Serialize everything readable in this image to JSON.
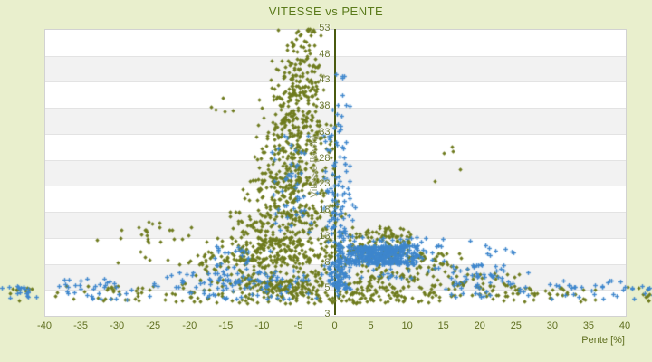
{
  "title": "VITESSE vs PENTE",
  "colors": {
    "page_bg": "#e9efcd",
    "plot_bg": "#ffffff",
    "band_alt": "#f2f2f2",
    "band_line": "#e3e3e3",
    "plot_border": "#d2d2d2",
    "zero_line": "#4a5a10",
    "axis_text": "#5e6e1e",
    "y_axis_title_text": "#9aa077",
    "series_a_color": "#6e7b1e",
    "series_b_color": "#3e86cd"
  },
  "chart_data": {
    "type": "scatter",
    "title": "VITESSE vs PENTE",
    "xlabel": "Pente [%]",
    "ylabel": "Vitesse [km/h]",
    "xlim": [
      -40,
      40
    ],
    "x_ticks": [
      -40,
      -35,
      -30,
      -25,
      -20,
      -15,
      -10,
      -5,
      0,
      5,
      10,
      15,
      20,
      25,
      30,
      35,
      40
    ],
    "y_ticks_top_to_bottom": [
      53,
      48,
      43,
      38,
      33,
      28,
      23,
      18,
      13,
      8,
      5,
      3
    ],
    "grid": "alternating horizontal bands, white and light gray, one band per y tick interval",
    "legend": "none",
    "zero_line_x": 0,
    "seed": 7,
    "series": [
      {
        "name": "serie-olive",
        "marker": "diamond",
        "color": "#6e7b1e",
        "clusters": [
          {
            "n": 45,
            "x": [
              -8,
              -1.5
            ],
            "y": [
              46,
              53
            ]
          },
          {
            "n": 70,
            "x": [
              -9.5,
              -1
            ],
            "y": [
              41,
              47
            ]
          },
          {
            "n": 105,
            "x": [
              -10.5,
              -0.5
            ],
            "y": [
              35,
              42
            ]
          },
          {
            "n": 120,
            "x": [
              -11,
              0.5
            ],
            "y": [
              29,
              36
            ]
          },
          {
            "n": 130,
            "x": [
              -12,
              1
            ],
            "y": [
              23,
              30
            ]
          },
          {
            "n": 140,
            "x": [
              -13.5,
              1.5
            ],
            "y": [
              17,
              24
            ]
          },
          {
            "n": 150,
            "x": [
              -16,
              2.5
            ],
            "y": [
              12,
              18
            ]
          },
          {
            "n": 160,
            "x": [
              -19,
              4
            ],
            "y": [
              8.5,
              13
            ]
          },
          {
            "n": 190,
            "x": [
              -22,
              6
            ],
            "y": [
              5.5,
              9.5
            ]
          },
          {
            "n": 120,
            "x": [
              -14,
              -0.5
            ],
            "y": [
              4.3,
              6
            ]
          },
          {
            "n": 200,
            "x": [
              0,
              13
            ],
            "y": [
              5,
              15
            ]
          },
          {
            "n": 75,
            "x": [
              6,
              20
            ],
            "y": [
              4.5,
              10
            ]
          },
          {
            "n": 50,
            "x": [
              13,
              26
            ],
            "y": [
              4.3,
              7
            ]
          },
          {
            "n": 140,
            "x": [
              -20,
              20
            ],
            "y": [
              3.9,
              5
            ]
          },
          {
            "n": 50,
            "x": [
              -40,
              -14
            ],
            "y": [
              4,
              5.4
            ]
          },
          {
            "n": 50,
            "x": [
              14,
              40
            ],
            "y": [
              4,
              5.4
            ]
          },
          {
            "n": 10,
            "x": [
              -46,
              -40
            ],
            "y": [
              4.1,
              5.2
            ]
          },
          {
            "n": 12,
            "x": [
              40,
              46.5
            ],
            "y": [
              4.1,
              5.2
            ]
          },
          {
            "n": 24,
            "x": [
              -35,
              -15
            ],
            "y": [
              7.5,
              15.5
            ]
          },
          {
            "n": 5,
            "x": [
              -17.5,
              -13.5
            ],
            "y": [
              36,
              40
            ]
          },
          {
            "n": 5,
            "x": [
              13.5,
              18.5
            ],
            "y": [
              21,
              31
            ]
          },
          {
            "n": 9,
            "x": [
              -30,
              -20
            ],
            "y": [
              11,
              16
            ]
          }
        ]
      },
      {
        "name": "serie-blue",
        "marker": "plus",
        "color": "#3e86cd",
        "clusters": [
          {
            "n": 380,
            "x": [
              0.5,
              12.5
            ],
            "y": [
              7.8,
              11.3
            ]
          },
          {
            "n": 90,
            "x": [
              0,
              16
            ],
            "y": [
              6.2,
              13
            ]
          },
          {
            "n": 70,
            "x": [
              -1.5,
              2.5
            ],
            "y": [
              4.8,
              8.5
            ]
          },
          {
            "n": 45,
            "x": [
              0.1,
              0.9
            ],
            "y": [
              4.5,
              12
            ]
          },
          {
            "n": 55,
            "x": [
              -2,
              3
            ],
            "y": [
              12,
              22
            ]
          },
          {
            "n": 40,
            "x": [
              -3,
              3
            ],
            "y": [
              21,
              33
            ]
          },
          {
            "n": 12,
            "x": [
              -1,
              2.5
            ],
            "y": [
              33,
              40
            ]
          },
          {
            "n": 5,
            "x": [
              0,
              2
            ],
            "y": [
              40,
              44.5
            ]
          },
          {
            "n": 45,
            "x": [
              -9,
              -2.5
            ],
            "y": [
              13,
              33
            ]
          },
          {
            "n": 110,
            "x": [
              -26,
              -1
            ],
            "y": [
              4.2,
              7.2
            ]
          },
          {
            "n": 35,
            "x": [
              -40,
              -26
            ],
            "y": [
              4.1,
              6.2
            ]
          },
          {
            "n": 18,
            "x": [
              -46.5,
              -40
            ],
            "y": [
              4.2,
              5.4
            ]
          },
          {
            "n": 65,
            "x": [
              13,
              28
            ],
            "y": [
              4.4,
              7.8
            ]
          },
          {
            "n": 28,
            "x": [
              28,
              41
            ],
            "y": [
              4.2,
              6.2
            ]
          },
          {
            "n": 10,
            "x": [
              40,
              46.5
            ],
            "y": [
              4.2,
              5.4
            ]
          },
          {
            "n": 9,
            "x": [
              16,
              28
            ],
            "y": [
              9,
              13
            ]
          },
          {
            "n": 25,
            "x": [
              -20,
              -8
            ],
            "y": [
              7,
              12
            ]
          }
        ]
      }
    ]
  }
}
